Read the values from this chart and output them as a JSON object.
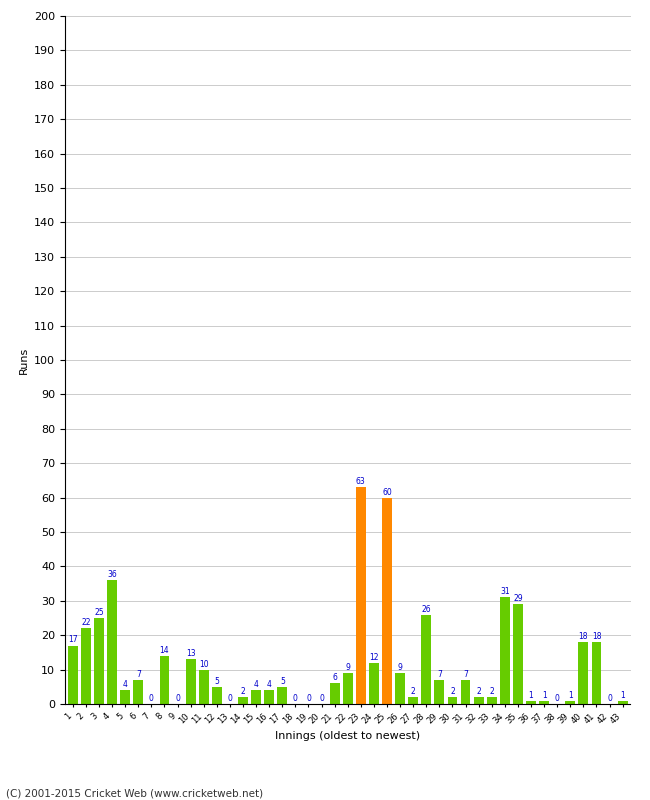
{
  "innings": [
    1,
    2,
    3,
    4,
    5,
    6,
    7,
    8,
    9,
    10,
    11,
    12,
    13,
    14,
    15,
    16,
    17,
    18,
    19,
    20,
    21,
    22,
    23,
    24,
    25,
    26,
    27,
    28,
    29,
    30,
    31,
    32,
    33,
    34,
    35,
    36,
    37,
    38,
    39,
    40,
    41,
    42,
    43
  ],
  "runs": [
    17,
    22,
    25,
    36,
    4,
    7,
    0,
    14,
    0,
    13,
    10,
    5,
    0,
    2,
    4,
    4,
    5,
    0,
    0,
    0,
    6,
    9,
    63,
    12,
    60,
    9,
    2,
    26,
    7,
    2,
    7,
    2,
    2,
    31,
    29,
    1,
    1,
    0,
    1,
    18,
    18,
    0,
    1
  ],
  "colors": [
    "#66cc00",
    "#66cc00",
    "#66cc00",
    "#66cc00",
    "#66cc00",
    "#66cc00",
    "#66cc00",
    "#66cc00",
    "#66cc00",
    "#66cc00",
    "#66cc00",
    "#66cc00",
    "#66cc00",
    "#66cc00",
    "#66cc00",
    "#66cc00",
    "#66cc00",
    "#66cc00",
    "#66cc00",
    "#66cc00",
    "#66cc00",
    "#66cc00",
    "#ff8800",
    "#66cc00",
    "#ff8800",
    "#66cc00",
    "#66cc00",
    "#66cc00",
    "#66cc00",
    "#66cc00",
    "#66cc00",
    "#66cc00",
    "#66cc00",
    "#66cc00",
    "#66cc00",
    "#66cc00",
    "#66cc00",
    "#66cc00",
    "#66cc00",
    "#66cc00",
    "#66cc00",
    "#66cc00",
    "#66cc00"
  ],
  "ylabel": "Runs",
  "xlabel": "Innings (oldest to newest)",
  "ylim": [
    0,
    200
  ],
  "yticks": [
    0,
    10,
    20,
    30,
    40,
    50,
    60,
    70,
    80,
    90,
    100,
    110,
    120,
    130,
    140,
    150,
    160,
    170,
    180,
    190,
    200
  ],
  "label_color": "#0000cc",
  "bar_edge_color": "#448800",
  "background_color": "#ffffff",
  "grid_color": "#cccccc",
  "footer": "(C) 2001-2015 Cricket Web (www.cricketweb.net)"
}
